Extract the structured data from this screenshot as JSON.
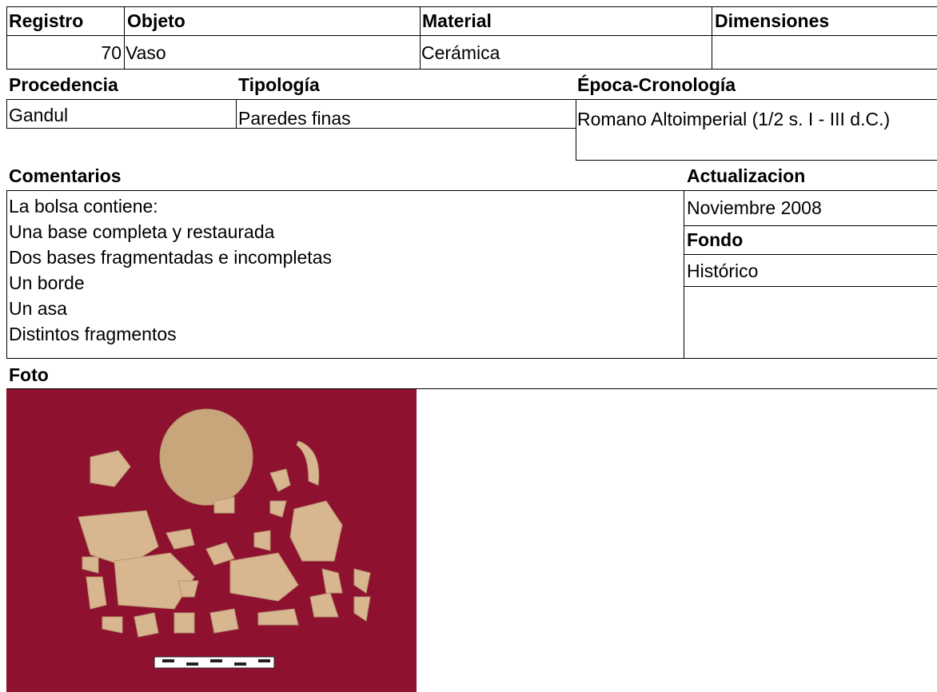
{
  "identificacion": {
    "headers": [
      "Registro",
      "Objeto",
      "Material",
      "Dimensiones"
    ],
    "registro": 70,
    "objeto": "Vaso",
    "material": "Cerámica"
  },
  "origen": {
    "headers": [
      "Procedencia",
      "Tipología",
      "Época-Cronología"
    ],
    "procedencia": "Gandul",
    "tipologia": "Paredes finas",
    "epoca": "Romano Altoimperial (1/2 s. I - III d.C.)"
  },
  "comentarios": {
    "header": "Comentarios",
    "lines": [
      "La bolsa contiene:",
      "Una base completa y restaurada",
      "Dos bases fragmentadas e incompletas",
      "Un borde",
      "Un asa",
      "Distintos fragmentos"
    ]
  },
  "actualizacion": {
    "header": "Actualizacion",
    "value": "Noviembre 2008"
  },
  "fondo": {
    "header": "Fondo",
    "value": "Histórico"
  },
  "foto": {
    "header": "Foto"
  }
}
